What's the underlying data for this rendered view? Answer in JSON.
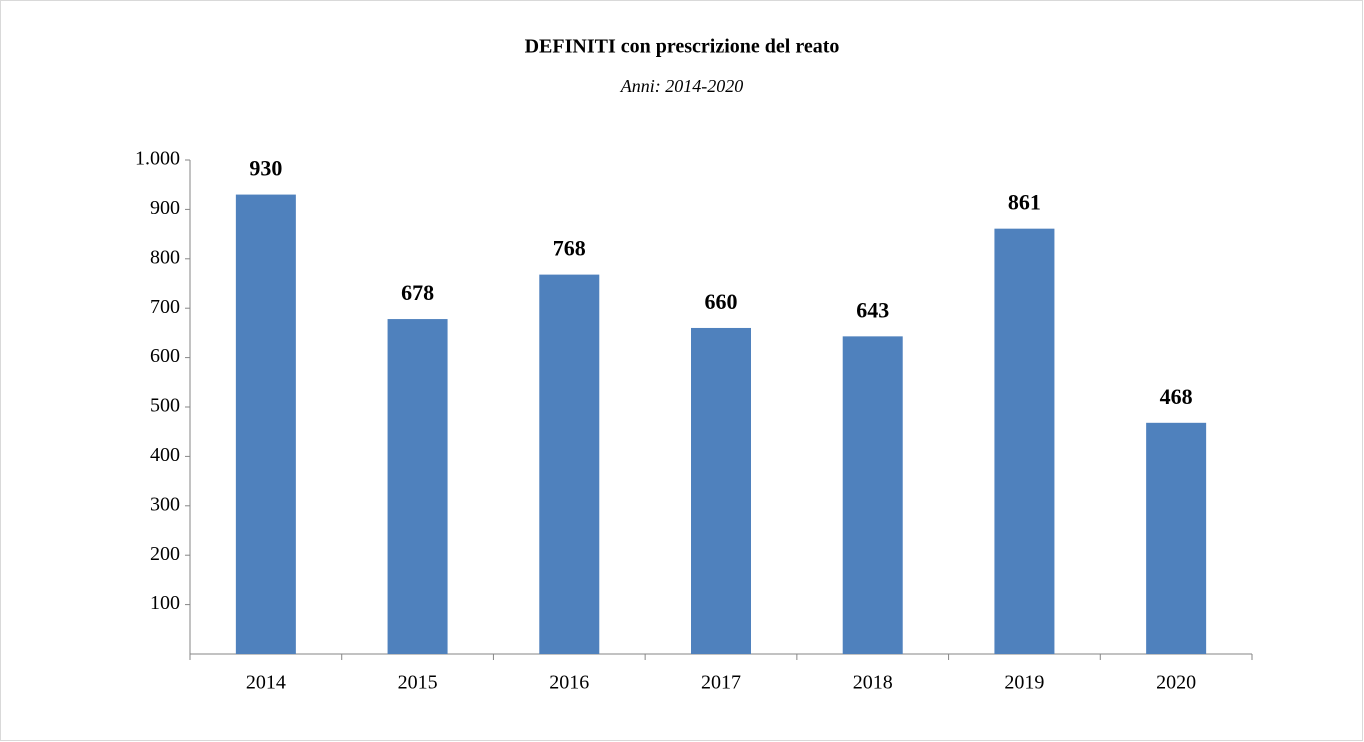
{
  "chart_data": {
    "type": "bar",
    "title": "DEFINITI con prescrizione del reato",
    "subtitle": "Anni: 2014-2020",
    "categories": [
      "2014",
      "2015",
      "2016",
      "2017",
      "2018",
      "2019",
      "2020"
    ],
    "values": [
      930,
      678,
      768,
      660,
      643,
      861,
      468
    ],
    "color": "#4f81bd",
    "ylim": [
      0,
      1000
    ],
    "yticks": [
      100,
      200,
      300,
      400,
      500,
      600,
      700,
      800,
      900,
      {
        "value": 1000,
        "label": "1.000"
      }
    ],
    "grid": false
  }
}
